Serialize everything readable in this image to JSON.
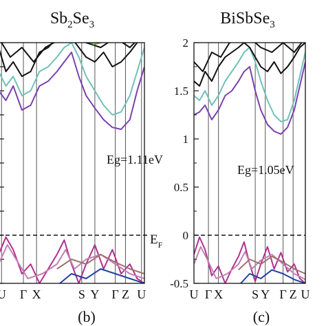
{
  "chart_data": [
    {
      "type": "line",
      "panel_label": "(b)",
      "material": {
        "base": "Sb",
        "sub": "2",
        "mid": "Se",
        "sub2": "3"
      },
      "gap_label": "Eg=1.11eV",
      "fermi_label": {
        "base": "E",
        "sub": "F"
      },
      "high_symmetry_labels": [
        "U",
        "Γ",
        "X",
        "S",
        "Y",
        "Γ",
        "Z",
        "U"
      ],
      "ylim": [
        -0.5,
        2.0
      ],
      "grid": false,
      "series": [
        {
          "color": "#b03090",
          "x": [
            0,
            0.05,
            0.1,
            0.16,
            0.22,
            0.28,
            0.34,
            0.4,
            0.45,
            0.5,
            0.55,
            0.6,
            0.66,
            0.72,
            0.78,
            0.84,
            0.9,
            0.95,
            1.0
          ],
          "y": [
            -0.2,
            -0.02,
            -0.15,
            -0.4,
            -0.3,
            -0.5,
            -0.35,
            -0.2,
            -0.05,
            -0.3,
            -0.5,
            -0.3,
            -0.1,
            -0.35,
            -0.15,
            -0.4,
            -0.3,
            -0.45,
            -0.5
          ]
        },
        {
          "color": "#c080b0",
          "x": [
            0,
            0.06,
            0.12,
            0.2,
            0.3,
            0.4,
            0.46,
            0.52,
            0.6,
            0.7,
            0.8,
            0.9,
            1.0
          ],
          "y": [
            -0.3,
            -0.1,
            -0.25,
            -0.45,
            -0.4,
            -0.3,
            -0.15,
            -0.35,
            -0.25,
            -0.2,
            -0.3,
            -0.4,
            -0.45
          ]
        },
        {
          "color": "#2040a0",
          "x": [
            0.42,
            0.5,
            0.6,
            0.7,
            0.8,
            0.9,
            1.0
          ],
          "y": [
            -0.5,
            -0.4,
            -0.45,
            -0.35,
            -0.4,
            -0.45,
            -0.5
          ]
        },
        {
          "color": "#a07070",
          "x": [
            0.4,
            0.5,
            0.6,
            0.7,
            0.8,
            0.9,
            1.0
          ],
          "y": [
            -0.35,
            -0.25,
            -0.3,
            -0.2,
            -0.28,
            -0.35,
            -0.4
          ]
        },
        {
          "color": "#7a40b0",
          "x": [
            0,
            0.05,
            0.1,
            0.16,
            0.22,
            0.28,
            0.34,
            0.4,
            0.45,
            0.5,
            0.55,
            0.6,
            0.66,
            0.72,
            0.78,
            0.84,
            0.9,
            0.95,
            1.0
          ],
          "y": [
            1.5,
            1.4,
            1.55,
            1.3,
            1.35,
            1.55,
            1.6,
            1.7,
            1.8,
            1.9,
            1.65,
            1.45,
            1.32,
            1.2,
            1.12,
            1.1,
            1.2,
            1.5,
            1.75
          ]
        },
        {
          "color": "#70c0b8",
          "x": [
            0,
            0.05,
            0.1,
            0.16,
            0.22,
            0.28,
            0.34,
            0.4,
            0.45,
            0.5,
            0.55,
            0.6,
            0.66,
            0.72,
            0.78,
            0.84,
            0.9,
            0.95,
            1.0
          ],
          "y": [
            1.7,
            1.55,
            1.65,
            1.45,
            1.5,
            1.7,
            1.75,
            1.85,
            1.95,
            2.0,
            1.85,
            1.65,
            1.5,
            1.35,
            1.25,
            1.28,
            1.45,
            1.7,
            1.95
          ]
        },
        {
          "color": "#111111",
          "x": [
            0,
            0.05,
            0.1,
            0.16,
            0.22,
            0.28,
            0.34,
            0.4,
            0.45,
            0.5,
            0.55,
            0.6,
            0.66,
            0.72,
            0.78,
            0.84,
            0.9,
            0.95,
            1.0
          ],
          "y": [
            1.95,
            1.7,
            1.8,
            1.65,
            1.7,
            1.9,
            1.95,
            2.05,
            2.1,
            2.05,
            1.95,
            1.85,
            1.8,
            1.9,
            1.75,
            1.8,
            1.9,
            2.0,
            2.05
          ]
        },
        {
          "color": "#111111",
          "x": [
            0,
            0.08,
            0.16,
            0.24,
            0.32,
            0.5,
            0.6,
            0.7,
            0.8,
            0.9,
            1.0
          ],
          "y": [
            2.05,
            1.85,
            1.95,
            1.8,
            1.95,
            2.1,
            2.0,
            1.95,
            2.05,
            1.95,
            2.1
          ]
        },
        {
          "color": "#6aa030",
          "x": [
            0.6,
            0.65,
            0.7,
            0.75
          ],
          "y": [
            2.05,
            1.98,
            2.0,
            2.05
          ]
        }
      ]
    },
    {
      "type": "line",
      "panel_label": "(c)",
      "material": {
        "base": "BiSbSe",
        "sub": "3"
      },
      "gap_label": "Eg=1.05eV",
      "fermi_label": {
        "base": "",
        "sub": ""
      },
      "high_symmetry_labels": [
        "U",
        "Γ",
        "X",
        "S",
        "Y",
        "Γ",
        "Z",
        "U"
      ],
      "y_ticks": [
        "-0.5",
        "0",
        "0.5",
        "1",
        "1.5",
        "2"
      ],
      "ylim": [
        -0.5,
        2.0
      ],
      "grid": false,
      "series": [
        {
          "color": "#b03090",
          "x": [
            0,
            0.05,
            0.1,
            0.16,
            0.22,
            0.28,
            0.34,
            0.4,
            0.45,
            0.5,
            0.55,
            0.6,
            0.66,
            0.72,
            0.78,
            0.84,
            0.9,
            0.95,
            1.0
          ],
          "y": [
            -0.2,
            -0.02,
            -0.15,
            -0.42,
            -0.32,
            -0.5,
            -0.35,
            -0.22,
            -0.07,
            -0.3,
            -0.48,
            -0.3,
            -0.12,
            -0.35,
            -0.18,
            -0.38,
            -0.3,
            -0.45,
            -0.5
          ]
        },
        {
          "color": "#c080b0",
          "x": [
            0,
            0.06,
            0.12,
            0.2,
            0.3,
            0.4,
            0.46,
            0.52,
            0.6,
            0.7,
            0.8,
            0.9,
            1.0
          ],
          "y": [
            -0.3,
            -0.12,
            -0.25,
            -0.45,
            -0.4,
            -0.3,
            -0.17,
            -0.35,
            -0.26,
            -0.2,
            -0.3,
            -0.4,
            -0.46
          ]
        },
        {
          "color": "#2040a0",
          "x": [
            0.42,
            0.5,
            0.6,
            0.7,
            0.8,
            0.9,
            1.0
          ],
          "y": [
            -0.5,
            -0.4,
            -0.45,
            -0.36,
            -0.4,
            -0.46,
            -0.5
          ]
        },
        {
          "color": "#a07070",
          "x": [
            0.4,
            0.5,
            0.6,
            0.7,
            0.8,
            0.9,
            1.0
          ],
          "y": [
            -0.36,
            -0.25,
            -0.3,
            -0.22,
            -0.28,
            -0.35,
            -0.4
          ]
        },
        {
          "color": "#7a40b0",
          "x": [
            0,
            0.05,
            0.1,
            0.16,
            0.22,
            0.28,
            0.34,
            0.4,
            0.45,
            0.5,
            0.55,
            0.6,
            0.66,
            0.72,
            0.78,
            0.84,
            0.9,
            0.95,
            1.0
          ],
          "y": [
            1.25,
            1.28,
            1.35,
            1.2,
            1.3,
            1.45,
            1.5,
            1.6,
            1.7,
            1.75,
            1.5,
            1.3,
            1.15,
            1.08,
            1.05,
            1.12,
            1.3,
            1.55,
            1.8
          ]
        },
        {
          "color": "#70c0b8",
          "x": [
            0,
            0.05,
            0.1,
            0.16,
            0.22,
            0.28,
            0.34,
            0.4,
            0.45,
            0.5,
            0.55,
            0.6,
            0.66,
            0.72,
            0.78,
            0.84,
            0.9,
            0.95,
            1.0
          ],
          "y": [
            1.45,
            1.4,
            1.5,
            1.35,
            1.45,
            1.6,
            1.7,
            1.8,
            1.9,
            1.95,
            1.8,
            1.6,
            1.4,
            1.25,
            1.18,
            1.2,
            1.4,
            1.65,
            1.9
          ]
        },
        {
          "color": "#111111",
          "x": [
            0,
            0.05,
            0.1,
            0.16,
            0.22,
            0.28,
            0.34,
            0.4,
            0.45,
            0.5,
            0.55,
            0.6,
            0.66,
            0.72,
            0.78,
            0.84,
            0.9,
            0.95,
            1.0
          ],
          "y": [
            1.6,
            1.55,
            1.7,
            1.6,
            1.75,
            1.85,
            1.9,
            1.95,
            2.0,
            1.95,
            1.85,
            1.75,
            1.7,
            1.8,
            1.68,
            1.75,
            1.85,
            1.95,
            2.0
          ]
        },
        {
          "color": "#111111",
          "x": [
            0,
            0.08,
            0.16,
            0.24,
            0.32,
            0.5,
            0.6,
            0.7,
            0.8,
            0.9,
            1.0
          ],
          "y": [
            1.8,
            1.7,
            1.9,
            1.85,
            2.0,
            2.05,
            1.95,
            1.9,
            2.0,
            1.9,
            2.05
          ]
        }
      ]
    }
  ]
}
